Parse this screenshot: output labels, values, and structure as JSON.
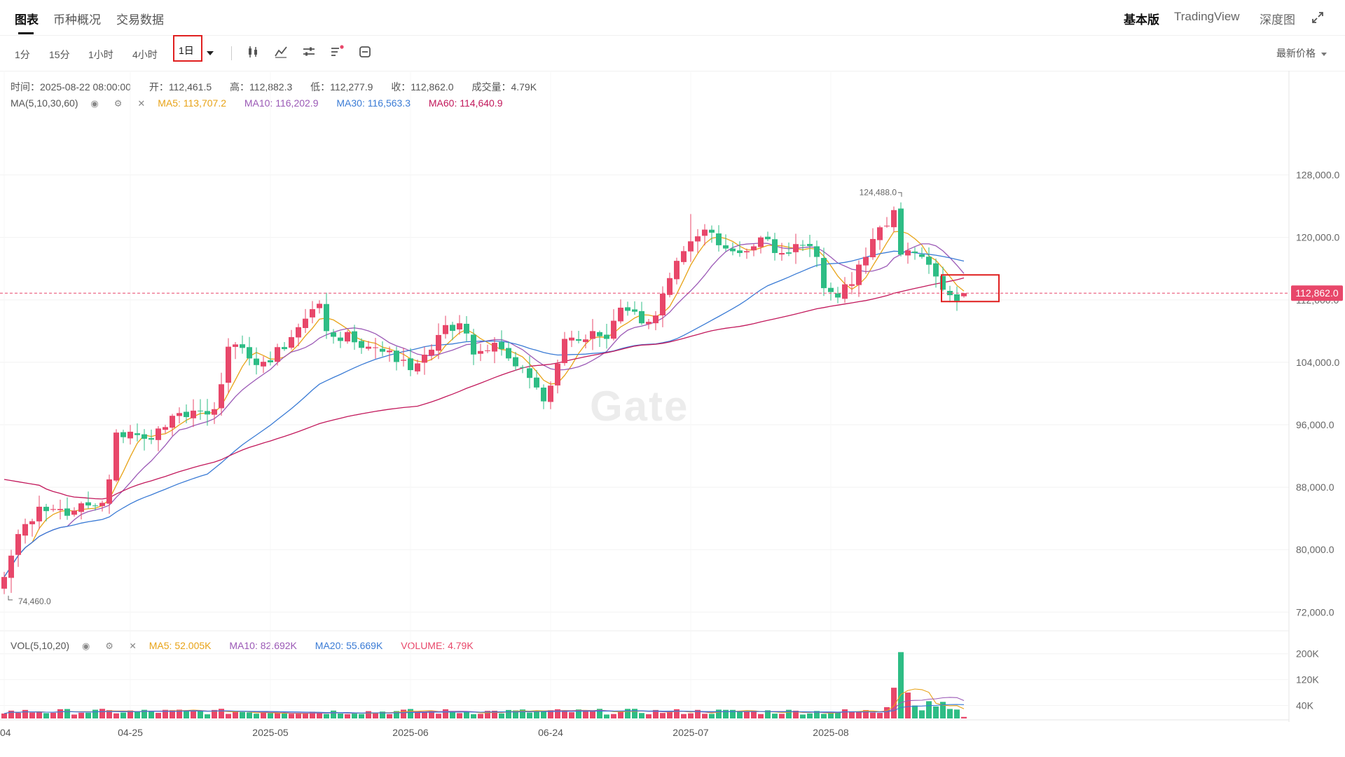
{
  "tabs": [
    {
      "label": "图表",
      "active": true
    },
    {
      "label": "币种概况",
      "active": false
    },
    {
      "label": "交易数据",
      "active": false
    }
  ],
  "right_tabs": [
    {
      "label": "基本版",
      "active": true
    },
    {
      "label": "TradingView",
      "active": false
    },
    {
      "label": "深度图",
      "active": false
    }
  ],
  "fullscreen_icon": "expand-icon",
  "timeframes": [
    "1分",
    "15分",
    "1小时",
    "4小时"
  ],
  "timeframe_active": "1日",
  "tools": [
    "candlestick-icon",
    "indicator-icon",
    "settings-icon",
    "drawing-icon",
    "compare-icon"
  ],
  "price_select": "最新价格",
  "ohlc": {
    "time": "时间：2025-08-22 08:00:00",
    "open": "开：112,461.5",
    "high": "高：112,882.3",
    "low": "低：112,277.9",
    "close": "收：112,862.0",
    "volume": "成交量：4.79K"
  },
  "ma_legend": {
    "label": "MA(5,10,30,60)",
    "items": [
      {
        "text": "MA5: 113,707.2",
        "color": "#e8a317"
      },
      {
        "text": "MA10: 116,202.9",
        "color": "#9b59b6"
      },
      {
        "text": "MA30: 116,563.3",
        "color": "#3a7bd5"
      },
      {
        "text": "MA60: 114,640.9",
        "color": "#c2185b"
      }
    ]
  },
  "vol_legend": {
    "label": "VOL(5,10,20)",
    "items": [
      {
        "text": "MA5: 52.005K",
        "color": "#e8a317"
      },
      {
        "text": "MA10: 82.692K",
        "color": "#9b59b6"
      },
      {
        "text": "MA20: 55.669K",
        "color": "#3a7bd5"
      },
      {
        "text": "VOLUME: 4.79K",
        "color": "#e8476a"
      }
    ]
  },
  "watermark": "Gate",
  "colors": {
    "up": "#e8476a",
    "down": "#2ebd85"
  },
  "chart_data": {
    "type": "candlestick",
    "price_axis": {
      "ticks": [
        72000,
        80000,
        88000,
        96000,
        104000,
        112000,
        120000,
        128000
      ],
      "tick_labels": [
        "72,000.0",
        "80,000.0",
        "88,000.0",
        "96,000.0",
        "104,000.0",
        "112,000.0",
        "120,000.0",
        "128,000.0"
      ],
      "range": [
        69600,
        135600
      ]
    },
    "volume_axis": {
      "ticks": [
        40000,
        120000,
        200000
      ],
      "tick_labels": [
        "40K",
        "120K",
        "200K"
      ],
      "range": [
        0,
        260000
      ]
    },
    "x_labels": [
      "04",
      "04-25",
      "2025-05",
      "2025-06",
      "06-24",
      "2025-07",
      "2025-08"
    ],
    "x_label_index": [
      0,
      18,
      38,
      58,
      78,
      98,
      118
    ],
    "current_price": 112862.0,
    "current_price_label": "112,862.0",
    "max_label": "124,488.0",
    "min_label": "74,460.0",
    "close_anchors": [
      [
        0,
        76500
      ],
      [
        2,
        82000
      ],
      [
        5,
        85500
      ],
      [
        10,
        85000
      ],
      [
        14,
        86000
      ],
      [
        15,
        89000
      ],
      [
        16,
        95000
      ],
      [
        20,
        94200
      ],
      [
        25,
        97500
      ],
      [
        30,
        98000
      ],
      [
        32,
        106000
      ],
      [
        35,
        104500
      ],
      [
        38,
        104000
      ],
      [
        42,
        108500
      ],
      [
        45,
        111500
      ],
      [
        46,
        108000
      ],
      [
        52,
        106000
      ],
      [
        55,
        105500
      ],
      [
        58,
        103000
      ],
      [
        62,
        107500
      ],
      [
        65,
        109000
      ],
      [
        67,
        105000
      ],
      [
        70,
        106500
      ],
      [
        72,
        104500
      ],
      [
        75,
        102000
      ],
      [
        77,
        99000
      ],
      [
        80,
        107000
      ],
      [
        84,
        108000
      ],
      [
        86,
        107000
      ],
      [
        88,
        111000
      ],
      [
        91,
        109000
      ],
      [
        93,
        110000
      ],
      [
        94,
        112800
      ],
      [
        96,
        117000
      ],
      [
        98,
        119500
      ],
      [
        100,
        121000
      ],
      [
        102,
        119000
      ],
      [
        105,
        118000
      ],
      [
        108,
        120000
      ],
      [
        111,
        118000
      ],
      [
        114,
        119000
      ],
      [
        116,
        117500
      ],
      [
        117,
        113500
      ],
      [
        118,
        113000
      ],
      [
        119,
        112300
      ],
      [
        121,
        114000
      ],
      [
        123,
        117500
      ],
      [
        124,
        119800
      ],
      [
        126,
        121500
      ],
      [
        127,
        123500
      ],
      [
        128,
        117800
      ],
      [
        130,
        118000
      ],
      [
        132,
        116500
      ],
      [
        134,
        113300
      ],
      [
        135,
        112600
      ],
      [
        137,
        112862
      ]
    ],
    "lows": [
      [
        1,
        74460
      ],
      [
        77,
        98000
      ]
    ],
    "highs": [
      [
        98,
        123000
      ],
      [
        128,
        124488
      ]
    ]
  }
}
